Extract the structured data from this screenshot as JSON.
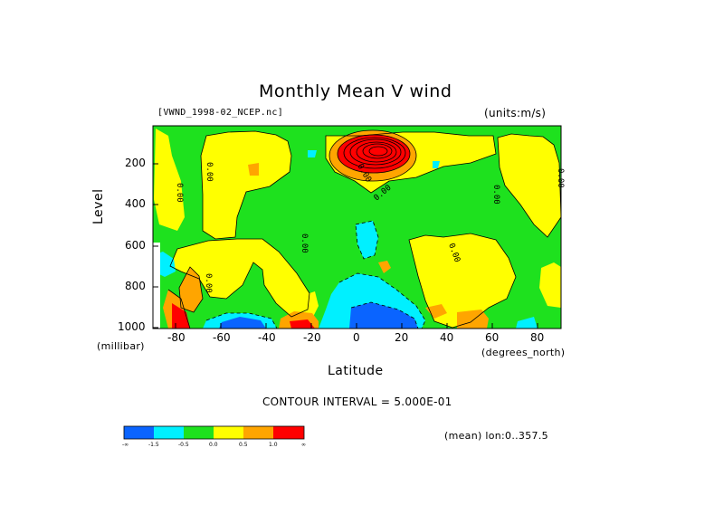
{
  "chart_data": {
    "type": "heatmap",
    "title": "Monthly Mean V wind",
    "dataset_label": "[VWND_1998-02_NCEP.nc]",
    "units_label": "(units:m/s)",
    "xlabel": "Latitude",
    "ylabel": "Level",
    "x_units": "(degrees_north)",
    "y_units": "(millibar)",
    "x_ticks": [
      "-80",
      "-60",
      "-40",
      "-20",
      "0",
      "20",
      "40",
      "60",
      "80"
    ],
    "y_ticks": [
      "200",
      "400",
      "600",
      "800",
      "1000"
    ],
    "xlim": [
      -90,
      90
    ],
    "ylim": [
      1000,
      10
    ],
    "y_reversed": true,
    "contour_interval_text": "CONTOUR INTERVAL = 5.000E-01",
    "footer_text": "(mean) lon:0..357.5",
    "colorbar": {
      "labels": [
        "-∞",
        "-1.5",
        "-0.5",
        "0.0",
        "0.5",
        "1.0",
        "∞"
      ],
      "colors": [
        "#0a64ff",
        "#00f0ff",
        "#1ee11e",
        "#ffff00",
        "#ffa500",
        "#ff0000"
      ]
    },
    "contour_labels": [
      "0.00"
    ],
    "regions": [
      {
        "name": "north-upper-max",
        "lat": 8,
        "level": 150,
        "value": 4.0
      },
      {
        "name": "equator-lower-min",
        "lat": 5,
        "level": 900,
        "value": -2.0
      },
      {
        "name": "southern-surface-max",
        "lat": -80,
        "level": 950,
        "value": 2.0
      },
      {
        "name": "southern-surface-min",
        "lat": -50,
        "level": 990,
        "value": -2.0
      },
      {
        "name": "midlat-surface-max",
        "lat": -25,
        "level": 990,
        "value": 2.0
      }
    ]
  }
}
